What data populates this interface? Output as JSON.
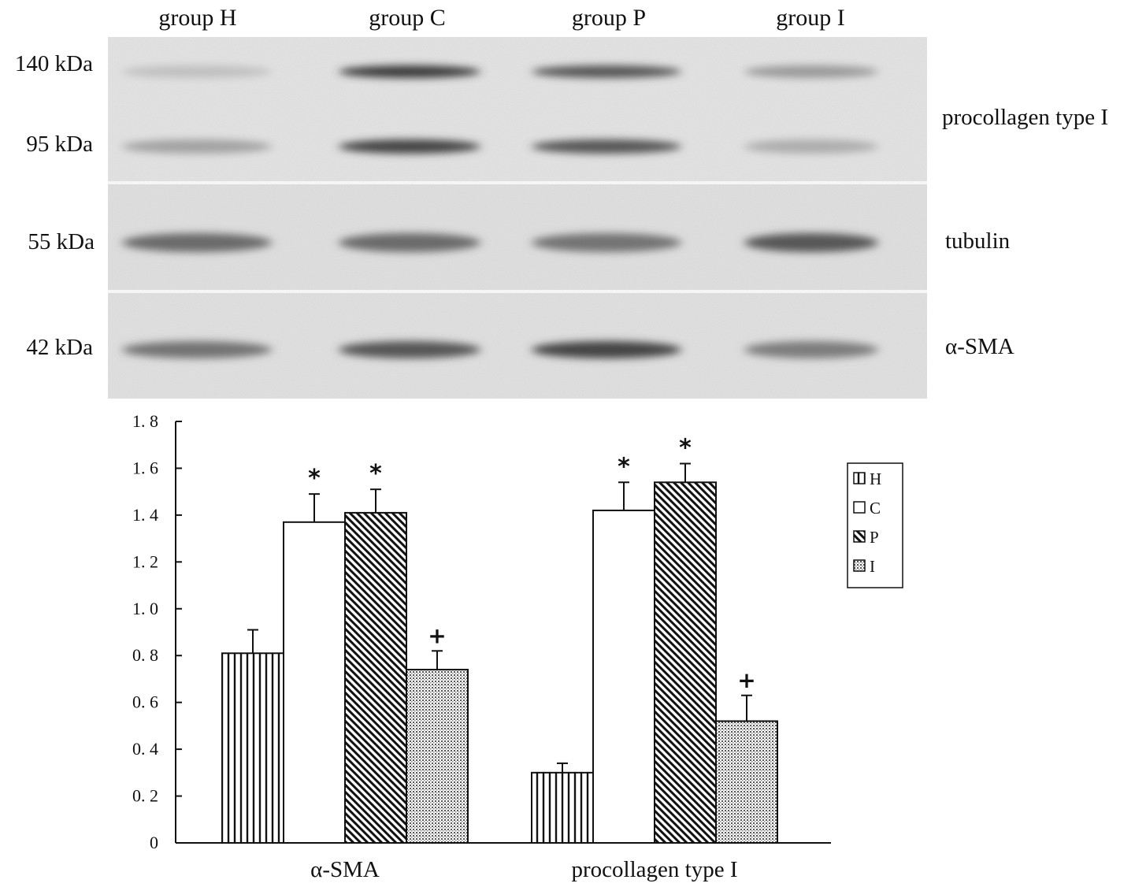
{
  "blot": {
    "lanes": [
      "group H",
      "group C",
      "group P",
      "group I"
    ],
    "mw_markers": [
      "140 kDa",
      "95 kDa",
      "55 kDa",
      "42 kDa"
    ],
    "proteins": [
      "procollagen type I",
      "tubulin",
      "α-SMA"
    ],
    "band_intensity": {
      "procollagen_140": [
        0.15,
        0.85,
        0.7,
        0.35
      ],
      "procollagen_95": [
        0.3,
        0.8,
        0.7,
        0.25
      ],
      "tubulin": [
        0.6,
        0.6,
        0.55,
        0.7
      ],
      "a_sma": [
        0.55,
        0.7,
        0.8,
        0.5
      ]
    }
  },
  "chart_data": {
    "type": "bar",
    "categories": [
      "α-SMA",
      "procollagen type I"
    ],
    "series": [
      {
        "name": "H",
        "values": [
          0.81,
          0.3
        ],
        "errors": [
          0.1,
          0.04
        ],
        "marks": [
          "",
          ""
        ],
        "pattern": "vertical-lines"
      },
      {
        "name": "C",
        "values": [
          1.37,
          1.42
        ],
        "errors": [
          0.12,
          0.12
        ],
        "marks": [
          "*",
          "*"
        ],
        "pattern": "white"
      },
      {
        "name": "P",
        "values": [
          1.41,
          1.54
        ],
        "errors": [
          0.1,
          0.08
        ],
        "marks": [
          "*",
          "*"
        ],
        "pattern": "diagonal-lines"
      },
      {
        "name": "I",
        "values": [
          0.74,
          0.52
        ],
        "errors": [
          0.08,
          0.11
        ],
        "marks": [
          "+",
          "+"
        ],
        "pattern": "dots"
      }
    ],
    "ylim": [
      0,
      1.8
    ],
    "yticks": [
      "0",
      "0. 2",
      "0. 4",
      "0. 6",
      "0. 8",
      "1. 0",
      "1. 2",
      "1. 4",
      "1. 6",
      "1. 8"
    ],
    "ytick_values": [
      0,
      0.2,
      0.4,
      0.6,
      0.8,
      1.0,
      1.2,
      1.4,
      1.6,
      1.8
    ],
    "legend": {
      "placement": "right",
      "entries": [
        "H",
        "C",
        "P",
        "I"
      ]
    },
    "grid": false
  }
}
